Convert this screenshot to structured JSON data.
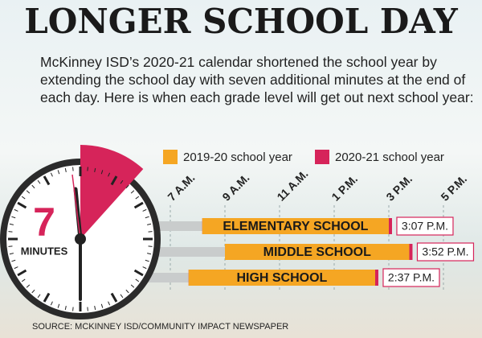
{
  "title": "LONGER SCHOOL DAY",
  "subtitle": "McKinney ISD’s 2020-21 calendar shortened the school year by extending the school day with seven additional minutes at the end of each day. Here is when each grade level will get out next school year:",
  "source": "SOURCE: MCKINNEY ISD/COMMUNITY IMPACT NEWSPAPER",
  "clock": {
    "minutes": 7,
    "label": "MINUTES",
    "color": "#d6245a"
  },
  "chart_data": {
    "type": "floating-bar",
    "categories": [
      "ELEMENTARY SCHOOL",
      "MIDDLE SCHOOL",
      "HIGH SCHOOL"
    ],
    "series": [
      {
        "name": "2019-20 school year",
        "color": "#f5a623",
        "starts": [
          8.17,
          9,
          7.67
        ],
        "values": [
          15,
          15.75,
          14.5
        ]
      },
      {
        "name": "2020-21 school year",
        "color": "#d6245a",
        "starts": [
          8.17,
          9,
          7.67
        ],
        "values": [
          15.117,
          15.867,
          14.617
        ],
        "value_labels": [
          "3:07 P.M.",
          "3:52 P.M.",
          "2:37 P.M."
        ]
      }
    ],
    "xlim": [
      6,
      18
    ],
    "xticks": [
      {
        "value": 7,
        "label": "7 A.M."
      },
      {
        "value": 9,
        "label": "9 A.M."
      },
      {
        "value": 11,
        "label": "11 A.M."
      },
      {
        "value": 13,
        "label": "1 P.M."
      },
      {
        "value": 15,
        "label": "3 P.M."
      },
      {
        "value": 17,
        "label": "5 P.M."
      }
    ],
    "grid": true
  }
}
